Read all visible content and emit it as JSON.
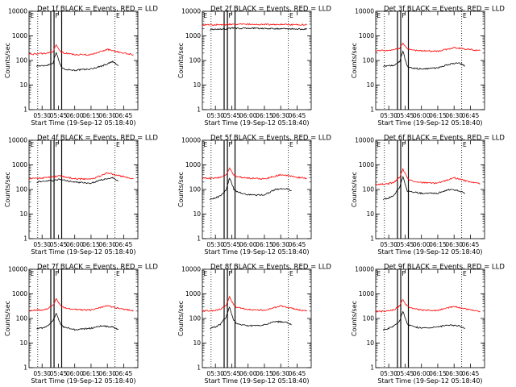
{
  "figure": {
    "panel_titles": [
      "Det 1f BLACK = Events, RED = LLD",
      "Det 2f BLACK = Events, RED = LLD",
      "Det 3f BLACK = Events, RED = LLD",
      "Det 4f BLACK = Events, RED = LLD",
      "Det 5f BLACK = Events, RED = LLD",
      "Det 6f BLACK = Events, RED = LLD",
      "Det 7f BLACK = Events, RED = LLD",
      "Det 8f BLACK = Events, RED = LLD",
      "Det 9f BLACK = Events, RED = LLD"
    ],
    "xlabel": "Start Time (19-Sep-12 05:18:40)",
    "ylabel": "Counts/sec",
    "x_ticks": [
      "05:30",
      "05:45",
      "06:00",
      "06:15",
      "06:30",
      "06:45"
    ],
    "y_ticks": [
      "1",
      "10",
      "100",
      "1000",
      "10000"
    ],
    "marker_labels": {
      "E": "E",
      "F": "F"
    },
    "colors": {
      "events": "#000000",
      "lld": "#ff0000",
      "axes": "#000000"
    }
  },
  "chart_data": [
    {
      "type": "line",
      "title": "Det 1f BLACK = Events, RED = LLD",
      "xlabel": "Start Time (19-Sep-12 05:18:40)",
      "ylabel": "Counts/sec",
      "y_scale": "log",
      "ylim": [
        1,
        10000
      ],
      "series": [
        {
          "name": "Events",
          "color": "#000000",
          "x": [
            "05:25",
            "05:30",
            "05:35",
            "05:40",
            "05:43",
            "05:45",
            "05:47",
            "05:50",
            "06:00",
            "06:15",
            "06:25",
            "06:35",
            "06:40"
          ],
          "y": [
            60,
            60,
            65,
            80,
            220,
            110,
            60,
            45,
            40,
            45,
            60,
            90,
            60
          ]
        },
        {
          "name": "LLD",
          "color": "#ff0000",
          "x": [
            "05:18",
            "05:30",
            "05:35",
            "05:40",
            "05:43",
            "05:45",
            "05:47",
            "05:50",
            "06:00",
            "06:15",
            "06:30",
            "06:45",
            "06:54"
          ],
          "y": [
            180,
            190,
            200,
            230,
            420,
            300,
            230,
            200,
            175,
            170,
            280,
            200,
            170
          ]
        }
      ]
    },
    {
      "type": "line",
      "title": "Det 2f BLACK = Events, RED = LLD",
      "xlabel": "Start Time (19-Sep-12 05:18:40)",
      "ylabel": "Counts/sec",
      "y_scale": "log",
      "ylim": [
        1,
        10000
      ],
      "series": [
        {
          "name": "Events",
          "color": "#000000",
          "x": [
            "05:25",
            "05:30",
            "05:40",
            "05:45",
            "05:50",
            "06:00",
            "06:15",
            "06:30",
            "06:45",
            "06:54"
          ],
          "y": [
            1800,
            1850,
            1900,
            2100,
            2000,
            2050,
            2000,
            1950,
            1900,
            1880
          ]
        },
        {
          "name": "LLD",
          "color": "#ff0000",
          "x": [
            "05:18",
            "05:30",
            "05:40",
            "05:45",
            "05:50",
            "06:00",
            "06:15",
            "06:30",
            "06:45",
            "06:54"
          ],
          "y": [
            2800,
            2850,
            2850,
            3000,
            3000,
            2950,
            2900,
            2900,
            2850,
            2800
          ]
        }
      ]
    },
    {
      "type": "line",
      "title": "Det 3f BLACK = Events, RED = LLD",
      "xlabel": "Start Time (19-Sep-12 05:18:40)",
      "ylabel": "Counts/sec",
      "y_scale": "log",
      "ylim": [
        1,
        10000
      ],
      "series": [
        {
          "name": "Events",
          "color": "#000000",
          "x": [
            "05:25",
            "05:30",
            "05:35",
            "05:40",
            "05:43",
            "05:45",
            "05:47",
            "05:50",
            "06:00",
            "06:15",
            "06:25",
            "06:35",
            "06:40"
          ],
          "y": [
            60,
            60,
            65,
            90,
            250,
            110,
            60,
            50,
            45,
            50,
            70,
            80,
            60
          ]
        },
        {
          "name": "LLD",
          "color": "#ff0000",
          "x": [
            "05:18",
            "05:30",
            "05:35",
            "05:40",
            "05:43",
            "05:45",
            "05:47",
            "05:50",
            "06:00",
            "06:15",
            "06:30",
            "06:45",
            "06:54"
          ],
          "y": [
            250,
            260,
            270,
            320,
            500,
            380,
            300,
            270,
            250,
            240,
            330,
            280,
            250
          ]
        }
      ]
    },
    {
      "type": "line",
      "title": "Det 4f BLACK = Events, RED = LLD",
      "xlabel": "Start Time (19-Sep-12 05:18:40)",
      "ylabel": "Counts/sec",
      "y_scale": "log",
      "ylim": [
        1,
        10000
      ],
      "series": [
        {
          "name": "Events",
          "color": "#000000",
          "x": [
            "05:25",
            "05:30",
            "05:40",
            "05:45",
            "05:50",
            "06:00",
            "06:15",
            "06:25",
            "06:35",
            "06:40"
          ],
          "y": [
            200,
            210,
            230,
            260,
            240,
            200,
            180,
            250,
            300,
            220
          ]
        },
        {
          "name": "LLD",
          "color": "#ff0000",
          "x": [
            "05:18",
            "05:30",
            "05:40",
            "05:45",
            "05:50",
            "06:00",
            "06:15",
            "06:30",
            "06:45",
            "06:54"
          ],
          "y": [
            280,
            290,
            320,
            360,
            330,
            270,
            260,
            470,
            330,
            280
          ]
        }
      ]
    },
    {
      "type": "line",
      "title": "Det 5f BLACK = Events, RED = LLD",
      "xlabel": "Start Time (19-Sep-12 05:18:40)",
      "ylabel": "Counts/sec",
      "y_scale": "log",
      "ylim": [
        1,
        10000
      ],
      "series": [
        {
          "name": "Events",
          "color": "#000000",
          "x": [
            "05:25",
            "05:30",
            "05:35",
            "05:40",
            "05:43",
            "05:45",
            "05:47",
            "05:50",
            "06:00",
            "06:15",
            "06:25",
            "06:35",
            "06:40"
          ],
          "y": [
            40,
            45,
            55,
            100,
            300,
            180,
            100,
            80,
            60,
            60,
            100,
            110,
            90
          ]
        },
        {
          "name": "LLD",
          "color": "#ff0000",
          "x": [
            "05:18",
            "05:30",
            "05:35",
            "05:40",
            "05:43",
            "05:45",
            "05:47",
            "05:50",
            "06:00",
            "06:15",
            "06:30",
            "06:45",
            "06:54"
          ],
          "y": [
            280,
            290,
            310,
            400,
            750,
            500,
            380,
            330,
            290,
            270,
            400,
            310,
            280
          ]
        }
      ]
    },
    {
      "type": "line",
      "title": "Det 6f BLACK = Events, RED = LLD",
      "xlabel": "Start Time (19-Sep-12 05:18:40)",
      "ylabel": "Counts/sec",
      "y_scale": "log",
      "ylim": [
        1,
        10000
      ],
      "series": [
        {
          "name": "Events",
          "color": "#000000",
          "x": [
            "05:25",
            "05:30",
            "05:35",
            "05:40",
            "05:43",
            "05:45",
            "05:47",
            "05:50",
            "06:00",
            "06:15",
            "06:25",
            "06:35",
            "06:40"
          ],
          "y": [
            40,
            45,
            60,
            120,
            350,
            160,
            90,
            80,
            70,
            70,
            100,
            90,
            70
          ]
        },
        {
          "name": "LLD",
          "color": "#ff0000",
          "x": [
            "05:18",
            "05:30",
            "05:35",
            "05:40",
            "05:43",
            "05:45",
            "05:47",
            "05:50",
            "06:00",
            "06:15",
            "06:30",
            "06:45",
            "06:54"
          ],
          "y": [
            160,
            170,
            200,
            320,
            650,
            450,
            300,
            230,
            190,
            180,
            300,
            200,
            170
          ]
        }
      ]
    },
    {
      "type": "line",
      "title": "Det 7f BLACK = Events, RED = LLD",
      "xlabel": "Start Time (19-Sep-12 05:18:40)",
      "ylabel": "Counts/sec",
      "y_scale": "log",
      "ylim": [
        1,
        10000
      ],
      "series": [
        {
          "name": "Events",
          "color": "#000000",
          "x": [
            "05:25",
            "05:30",
            "05:35",
            "05:40",
            "05:43",
            "05:45",
            "05:47",
            "05:50",
            "06:00",
            "06:15",
            "06:25",
            "06:35",
            "06:40"
          ],
          "y": [
            40,
            40,
            50,
            80,
            170,
            100,
            55,
            45,
            35,
            40,
            50,
            45,
            35
          ]
        },
        {
          "name": "LLD",
          "color": "#ff0000",
          "x": [
            "05:18",
            "05:30",
            "05:35",
            "05:40",
            "05:43",
            "05:45",
            "05:47",
            "05:50",
            "06:00",
            "06:15",
            "06:30",
            "06:45",
            "06:54"
          ],
          "y": [
            210,
            220,
            250,
            350,
            650,
            450,
            330,
            280,
            230,
            220,
            330,
            230,
            210
          ]
        }
      ]
    },
    {
      "type": "line",
      "title": "Det 8f BLACK = Events, RED = LLD",
      "xlabel": "Start Time (19-Sep-12 05:18:40)",
      "ylabel": "Counts/sec",
      "y_scale": "log",
      "ylim": [
        1,
        10000
      ],
      "series": [
        {
          "name": "Events",
          "color": "#000000",
          "x": [
            "05:25",
            "05:30",
            "05:35",
            "05:40",
            "05:43",
            "05:45",
            "05:47",
            "05:50",
            "06:00",
            "06:15",
            "06:25",
            "06:35",
            "06:40"
          ],
          "y": [
            40,
            45,
            60,
            120,
            300,
            140,
            80,
            60,
            50,
            55,
            75,
            70,
            55
          ]
        },
        {
          "name": "LLD",
          "color": "#ff0000",
          "x": [
            "05:18",
            "05:30",
            "05:35",
            "05:40",
            "05:43",
            "05:45",
            "05:47",
            "05:50",
            "06:00",
            "06:15",
            "06:30",
            "06:45",
            "06:54"
          ],
          "y": [
            200,
            210,
            240,
            350,
            750,
            480,
            340,
            280,
            230,
            220,
            320,
            230,
            200
          ]
        }
      ]
    },
    {
      "type": "line",
      "title": "Det 9f BLACK = Events, RED = LLD",
      "xlabel": "Start Time (19-Sep-12 05:18:40)",
      "ylabel": "Counts/sec",
      "y_scale": "log",
      "ylim": [
        1,
        10000
      ],
      "series": [
        {
          "name": "Events",
          "color": "#000000",
          "x": [
            "05:25",
            "05:30",
            "05:35",
            "05:40",
            "05:43",
            "05:45",
            "05:47",
            "05:50",
            "06:00",
            "06:15",
            "06:25",
            "06:35",
            "06:40"
          ],
          "y": [
            35,
            40,
            50,
            80,
            200,
            110,
            60,
            50,
            40,
            45,
            55,
            50,
            40
          ]
        },
        {
          "name": "LLD",
          "color": "#ff0000",
          "x": [
            "05:18",
            "05:30",
            "05:35",
            "05:40",
            "05:43",
            "05:45",
            "05:47",
            "05:50",
            "06:00",
            "06:15",
            "06:30",
            "06:45",
            "06:54"
          ],
          "y": [
            190,
            200,
            230,
            320,
            600,
            420,
            310,
            260,
            220,
            210,
            310,
            220,
            190
          ]
        }
      ]
    }
  ]
}
